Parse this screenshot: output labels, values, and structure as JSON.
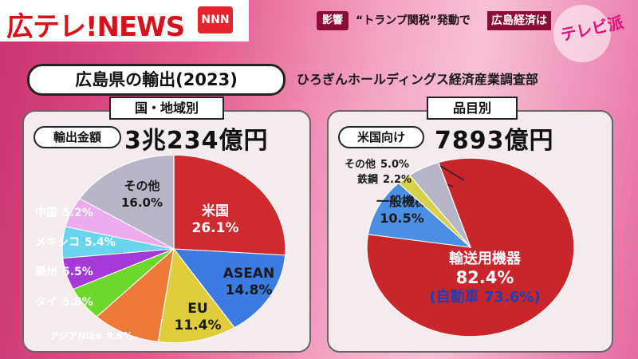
{
  "header": {
    "logo_text": "広テレ!NEWS",
    "logo_badge": "NNN",
    "headline_badge": "影響",
    "headline_text": "“トランプ関税”発動で",
    "headline_highlight": "広島経済は",
    "watermark": "テレビ派"
  },
  "title": "広島県の輸出(2023)",
  "source": "ひろぎんホールディングス経済産業調査部",
  "colors": {
    "background": "#e35a8e",
    "panel": "#f4ebef",
    "headline_box": "#8a0d38"
  },
  "chart_data": [
    {
      "type": "pie",
      "title": "国・地域別",
      "total_label": "輸出金額",
      "total_value": "3兆234億円",
      "slices": [
        {
          "label": "米国",
          "value": 26.1,
          "value_text": "26.1%",
          "color": "#cf2a2e"
        },
        {
          "label": "ASEAN",
          "value": 14.8,
          "value_text": "14.8%",
          "color": "#3b7be2"
        },
        {
          "label": "EU",
          "value": 11.4,
          "value_text": "11.4%",
          "color": "#e1cc3c"
        },
        {
          "label": "アジアNIEs",
          "value": 9.9,
          "value_text": "9.9%",
          "color": "#ee7a3a"
        },
        {
          "label": "タイ",
          "value": 5.8,
          "value_text": "5.8%",
          "color": "#6cd82c"
        },
        {
          "label": "豪州",
          "value": 5.5,
          "value_text": "5.5%",
          "color": "#a53ad8"
        },
        {
          "label": "メキシコ",
          "value": 5.4,
          "value_text": "5.4%",
          "color": "#6ad5ee"
        },
        {
          "label": "中国",
          "value": 5.2,
          "value_text": "5.2%",
          "color": "#eeaaee"
        },
        {
          "label": "その他",
          "value": 16.0,
          "value_text": "16.0%",
          "color": "#b6b6c6"
        }
      ]
    },
    {
      "type": "pie",
      "title": "品目別",
      "total_label": "米国向け",
      "total_value": "7893億円",
      "slices": [
        {
          "label": "輸送用機器",
          "value": 82.4,
          "value_text": "82.4%",
          "sub_label": "(自動車 73.6%)",
          "color": "#c9262c"
        },
        {
          "label": "一般機械",
          "value": 10.5,
          "value_text": "10.5%",
          "color": "#4a8fe4"
        },
        {
          "label": "鉄鋼",
          "value": 2.2,
          "value_text": "2.2%",
          "color": "#d8d04a"
        },
        {
          "label": "その他",
          "value": 5.0,
          "value_text": "5.0%",
          "color": "#b6b6c6"
        }
      ]
    }
  ]
}
